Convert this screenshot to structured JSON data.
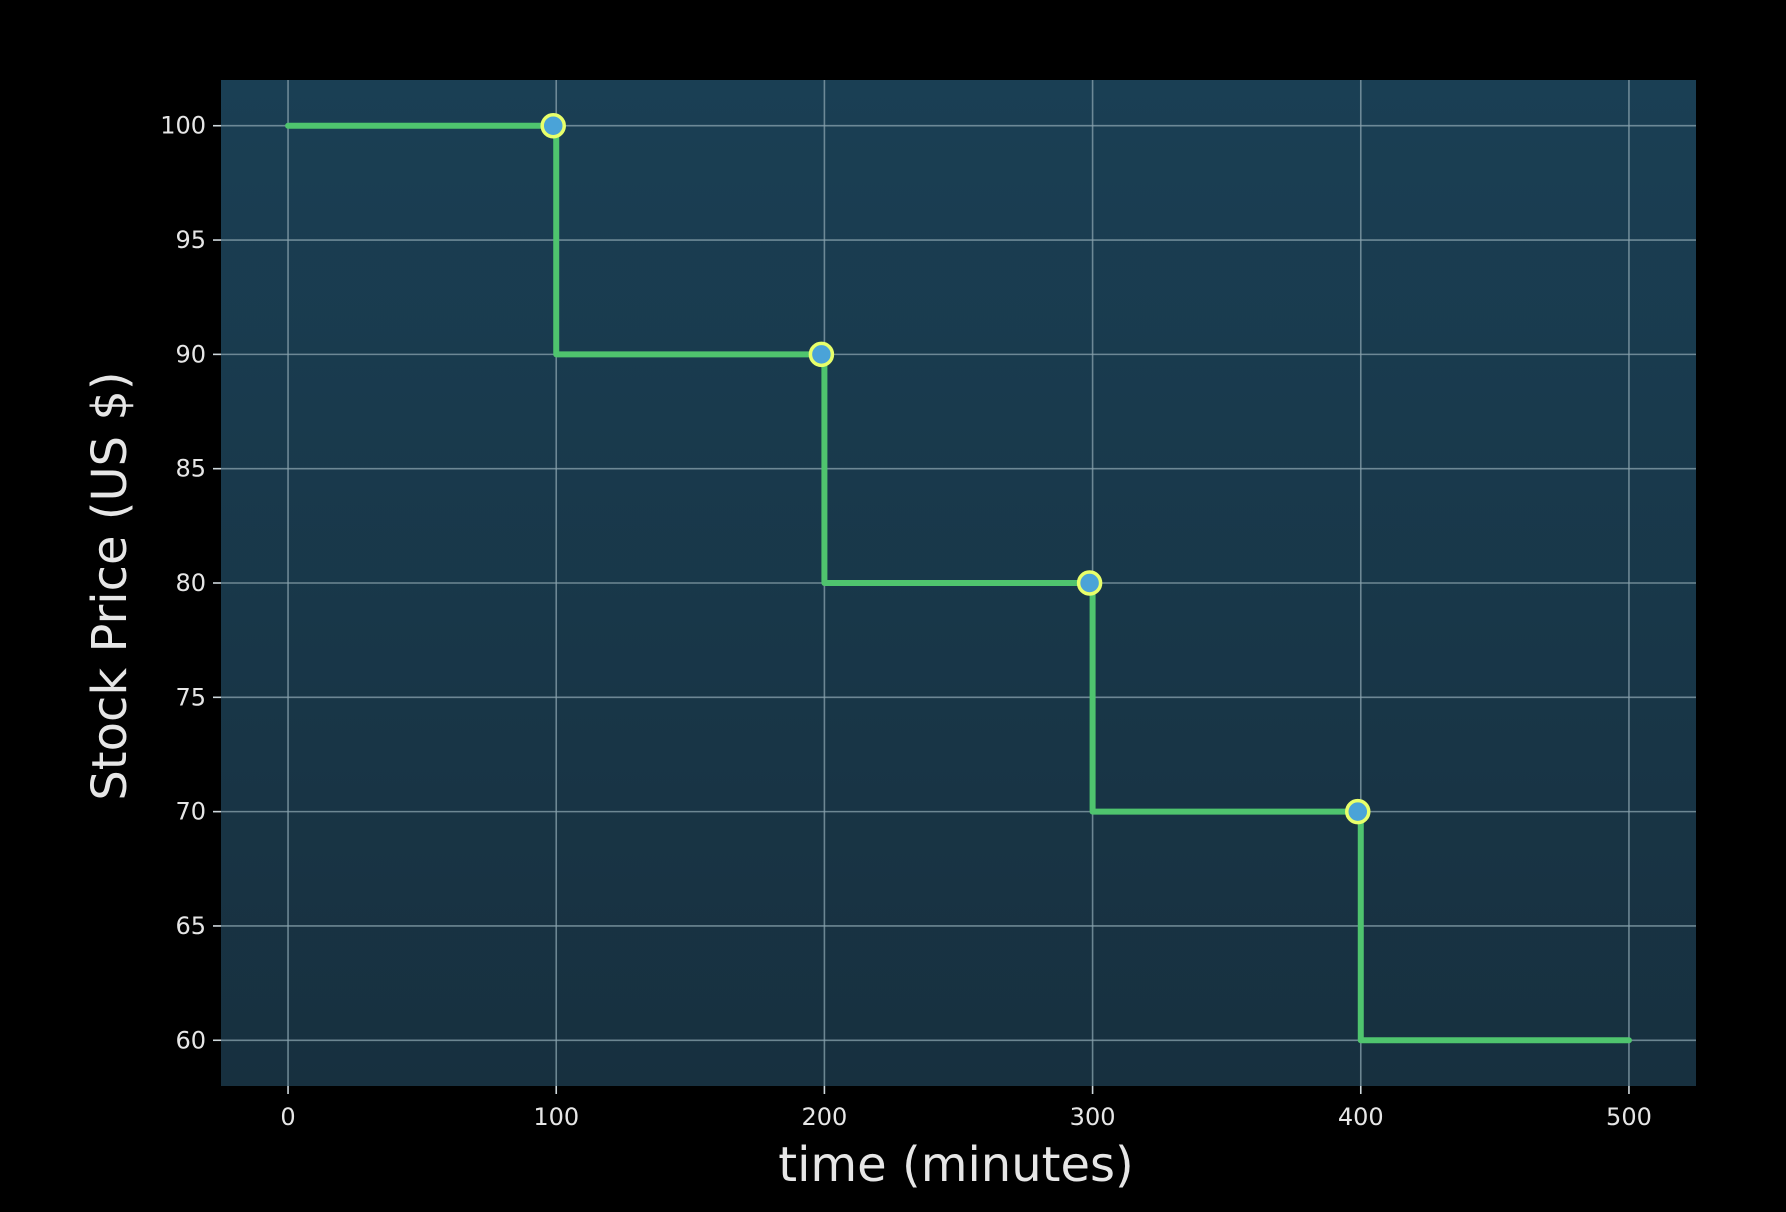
{
  "chart_data": {
    "type": "line",
    "step": true,
    "title": "",
    "xlabel": "time (minutes)",
    "ylabel": "Stock Price (US $)",
    "xlim": [
      -25,
      525
    ],
    "ylim": [
      58,
      102
    ],
    "xticks": [
      0,
      100,
      200,
      300,
      400,
      500
    ],
    "yticks": [
      60,
      65,
      70,
      75,
      80,
      85,
      90,
      95,
      100
    ],
    "grid": true,
    "series": [
      {
        "x": [
          0,
          100,
          100,
          200,
          200,
          300,
          300,
          400,
          400,
          500
        ],
        "y": [
          100,
          100,
          90,
          90,
          80,
          80,
          70,
          70,
          60,
          60
        ]
      }
    ],
    "markers": [
      {
        "x": 100,
        "y": 100
      },
      {
        "x": 200,
        "y": 90
      },
      {
        "x": 300,
        "y": 80
      },
      {
        "x": 400,
        "y": 70
      }
    ],
    "colors": {
      "background": "#000000",
      "plot_area_top": "#1a3f54",
      "plot_area_bottom": "#17303f",
      "grid": "#8aa3ad",
      "line": "#4fc46e",
      "marker_fill": "#4aa3d8",
      "marker_edge": "#e8ff6a"
    }
  }
}
